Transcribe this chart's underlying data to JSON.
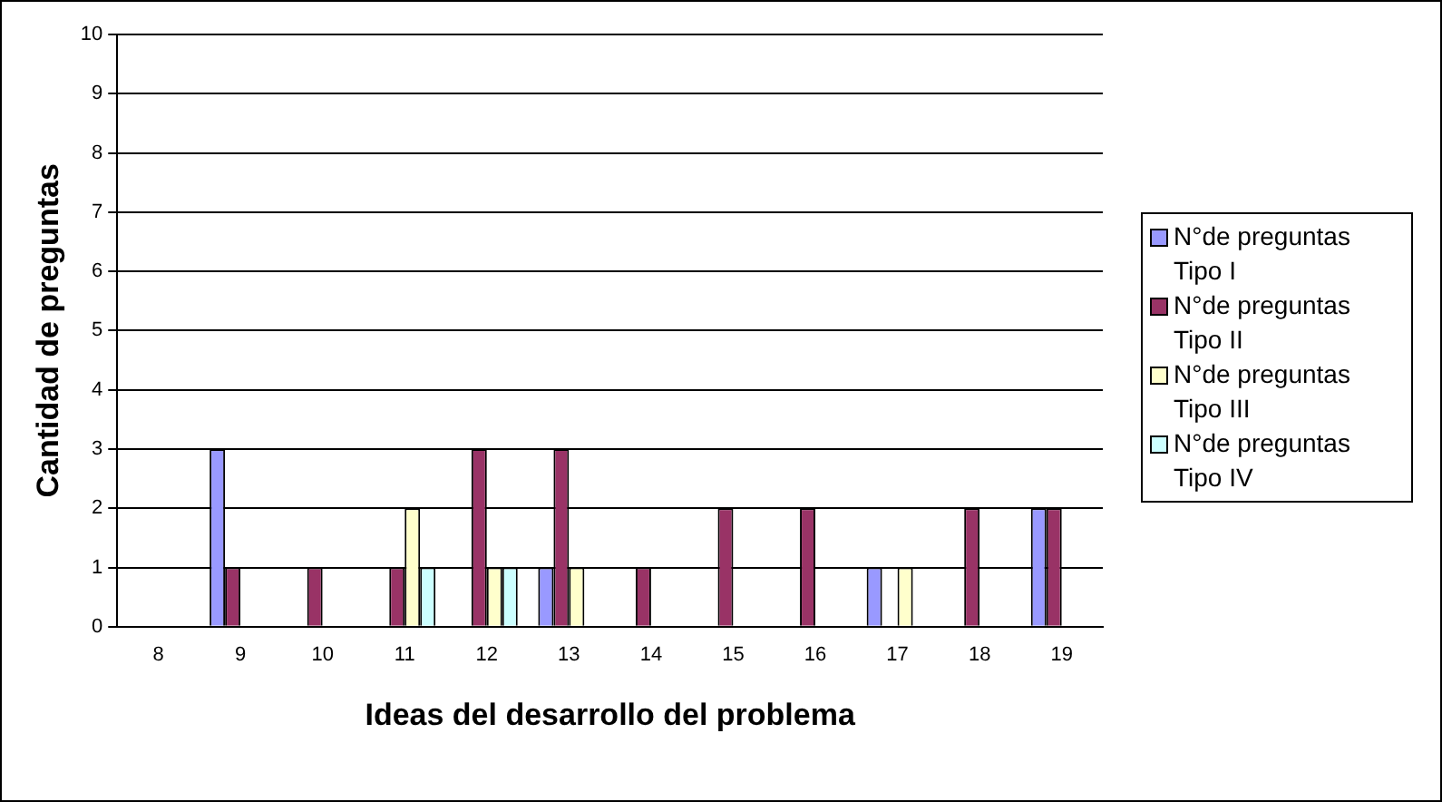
{
  "chart_data": {
    "type": "bar",
    "xlabel": "Ideas del desarrollo del problema",
    "ylabel": "Cantidad de preguntas",
    "categories": [
      "8",
      "9",
      "10",
      "11",
      "12",
      "13",
      "14",
      "15",
      "16",
      "17",
      "18",
      "19"
    ],
    "series": [
      {
        "name": "N°de preguntas Tipo I",
        "color": "#9999ff",
        "values": [
          0,
          3,
          0,
          0,
          0,
          1,
          0,
          0,
          0,
          1,
          0,
          2
        ]
      },
      {
        "name": "N°de preguntas Tipo II",
        "color": "#993366",
        "values": [
          0,
          1,
          1,
          1,
          3,
          3,
          1,
          2,
          2,
          0,
          2,
          2
        ]
      },
      {
        "name": "N°de preguntas Tipo III",
        "color": "#ffffcc",
        "values": [
          0,
          0,
          0,
          2,
          1,
          1,
          0,
          0,
          0,
          1,
          0,
          0
        ]
      },
      {
        "name": "N°de preguntas Tipo IV",
        "color": "#ccffff",
        "values": [
          0,
          0,
          0,
          1,
          1,
          0,
          0,
          0,
          0,
          0,
          0,
          0
        ]
      }
    ],
    "ylim": [
      0,
      10
    ],
    "yticks": [
      0,
      1,
      2,
      3,
      4,
      5,
      6,
      7,
      8,
      9,
      10
    ],
    "grid": "y",
    "legend": "right"
  }
}
